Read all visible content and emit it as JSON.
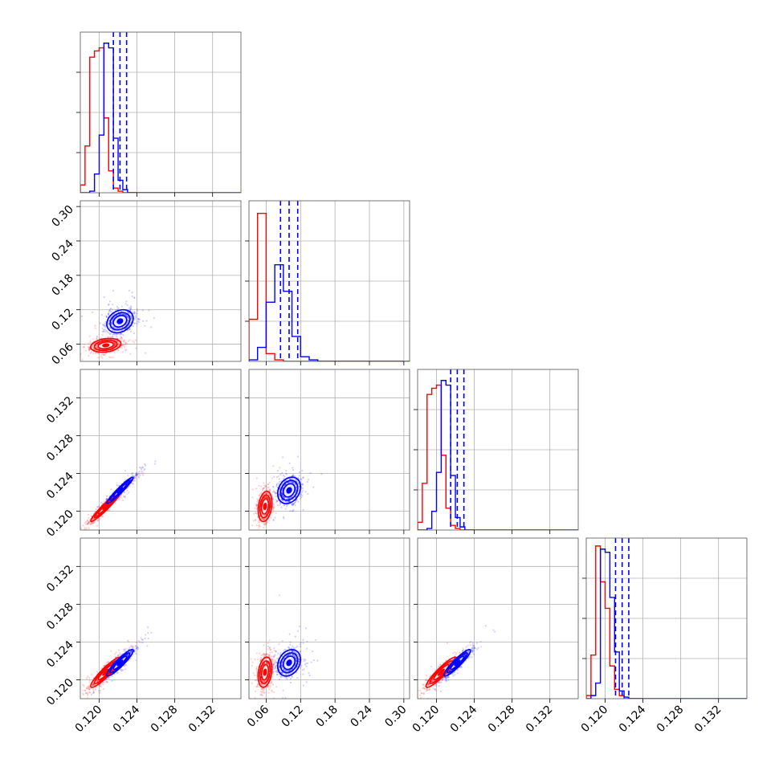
{
  "chart_data": {
    "type": "corner",
    "title": "",
    "num_parameters": 4,
    "parameter_labels": [
      "",
      "",
      "",
      ""
    ],
    "colors": {
      "red_series": "#ff0000",
      "blue_series": "#0000ff",
      "grid": "#b0b0b0"
    },
    "series": [
      {
        "name": "",
        "color": "#ff0000",
        "means": [
          0.1207,
          0.058,
          0.1205,
          0.1208
        ],
        "sds": [
          0.0008,
          0.006,
          0.0008,
          0.0008
        ]
      },
      {
        "name": "",
        "color": "#0000ff",
        "means": [
          0.1222,
          0.1,
          0.1222,
          0.1218
        ],
        "sds": [
          0.0007,
          0.01,
          0.0007,
          0.0007
        ]
      }
    ],
    "quantile_lines": {
      "color": "#0000ff",
      "style": "dashed",
      "values": [
        [
          0.1215,
          0.1222,
          0.1229
        ],
        [
          0.085,
          0.1,
          0.115
        ],
        [
          0.1215,
          0.1222,
          0.1229
        ],
        [
          0.1211,
          0.1218,
          0.1225
        ]
      ]
    },
    "histograms": {
      "bins": [
        0.118,
        0.1185,
        0.119,
        0.1195,
        0.12,
        0.1205,
        0.121,
        0.1215,
        0.122,
        0.1225,
        0.123,
        0.1235,
        0.124,
        0.1245,
        0.125,
        0.1255,
        0.126,
        0.127,
        0.128,
        0.13,
        0.132,
        0.135
      ],
      "param1": {
        "red": [
          0.05,
          0.3,
          0.87,
          0.91,
          0.93,
          0.48,
          0.14,
          0.03,
          0.01,
          0,
          0,
          0
        ],
        "blue": [
          0,
          0,
          0.01,
          0.12,
          0.37,
          0.96,
          0.93,
          0.35,
          0.08,
          0.02,
          0,
          0
        ]
      },
      "param2": {
        "bin_edges": [
          0.03,
          0.045,
          0.06,
          0.075,
          0.09,
          0.105,
          0.12,
          0.135,
          0.15,
          0.165,
          0.18,
          0.3
        ],
        "red": [
          0.27,
          0.95,
          0.05,
          0.01,
          0,
          0,
          0,
          0,
          0,
          0,
          0
        ],
        "blue": [
          0.01,
          0.09,
          0.38,
          0.62,
          0.45,
          0.16,
          0.03,
          0.01,
          0,
          0,
          0
        ]
      },
      "param3": {
        "red": [
          0.05,
          0.3,
          0.87,
          0.91,
          0.93,
          0.48,
          0.14,
          0.03,
          0.01,
          0,
          0,
          0
        ],
        "blue": [
          0,
          0,
          0.01,
          0.12,
          0.37,
          0.96,
          0.93,
          0.35,
          0.08,
          0.02,
          0,
          0
        ]
      },
      "param4": {
        "red": [
          0.02,
          0.28,
          0.98,
          0.75,
          0.58,
          0.21,
          0.06,
          0.02,
          0,
          0,
          0,
          0
        ],
        "blue": [
          0,
          0.02,
          0.1,
          0.96,
          0.94,
          0.65,
          0.3,
          0.05,
          0.01,
          0,
          0,
          0
        ]
      }
    },
    "axes": {
      "p1": {
        "range": [
          0.118,
          0.135
        ],
        "ticks": [
          "0.120",
          "0.124",
          "0.128",
          "0.132"
        ],
        "tick_values": [
          0.12,
          0.124,
          0.128,
          0.132
        ]
      },
      "p2": {
        "range": [
          0.03,
          0.31
        ],
        "ticks": [
          "0.06",
          "0.12",
          "0.18",
          "0.24",
          "0.30"
        ],
        "tick_values": [
          0.06,
          0.12,
          0.18,
          0.24,
          0.3
        ]
      },
      "p3": {
        "range": [
          0.118,
          0.135
        ],
        "ticks": [
          "0.120",
          "0.124",
          "0.128",
          "0.132"
        ],
        "tick_values": [
          0.12,
          0.124,
          0.128,
          0.132
        ]
      },
      "p4": {
        "range": [
          0.118,
          0.135
        ],
        "ticks": [
          "0.120",
          "0.124",
          "0.128",
          "0.132"
        ],
        "tick_values": [
          0.12,
          0.124,
          0.128,
          0.132
        ]
      }
    },
    "grid": true,
    "legend": "none"
  }
}
